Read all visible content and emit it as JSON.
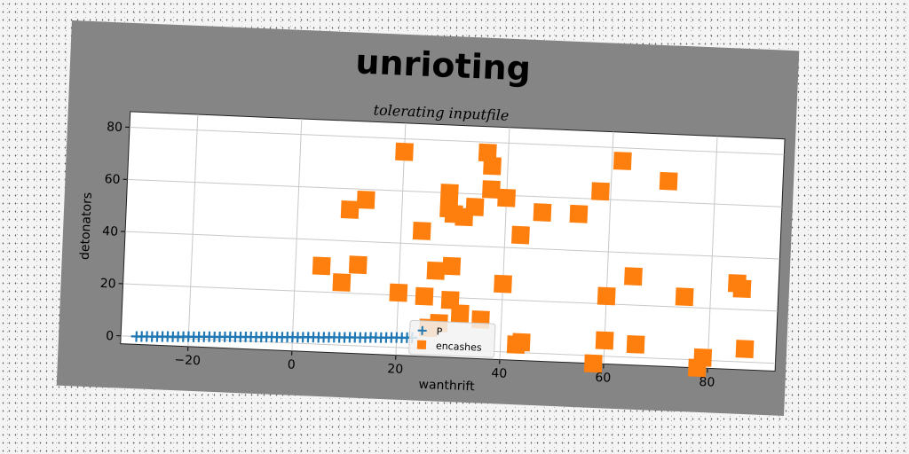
{
  "chart_data": {
    "type": "scatter",
    "title": "unrioting",
    "subtitle": "tolerating inputfile",
    "xlabel": "wanthrift",
    "ylabel": "detonators",
    "xlim": [
      -33,
      93
    ],
    "ylim": [
      -3,
      86
    ],
    "xticks": [
      -20,
      0,
      20,
      40,
      60,
      80
    ],
    "yticks": [
      0,
      20,
      40,
      60,
      80
    ],
    "grid": true,
    "legend_position": "lower-center",
    "series": [
      {
        "name": "P",
        "marker": "plus",
        "color": "#1f77b4",
        "x": [
          -30,
          -29,
          -28,
          -27,
          -26,
          -25,
          -24,
          -23,
          -22,
          -21,
          -20,
          -19,
          -18,
          -17,
          -16,
          -15,
          -14,
          -13,
          -12,
          -11,
          -10,
          -9,
          -8,
          -7,
          -6,
          -5,
          -4,
          -3,
          -2,
          -1,
          0,
          1,
          2,
          3,
          4,
          5,
          6,
          7,
          8,
          9,
          10,
          11,
          12,
          13,
          14,
          15,
          16,
          17,
          18,
          19,
          20,
          21,
          22,
          23
        ],
        "y": [
          0,
          0.1,
          0.2,
          0.2,
          0.3,
          0.4,
          0.5,
          0.5,
          0.6,
          0.7,
          0.8,
          0.8,
          0.9,
          1.0,
          1.1,
          1.1,
          1.2,
          1.3,
          1.4,
          1.4,
          1.5,
          1.6,
          1.7,
          1.7,
          1.8,
          1.9,
          2.0,
          2.0,
          2.1,
          2.2,
          2.3,
          2.3,
          2.4,
          2.5,
          2.6,
          2.6,
          2.7,
          2.8,
          2.9,
          2.9,
          3.0,
          3.1,
          3.2,
          3.2,
          3.3,
          3.4,
          3.5,
          3.5,
          3.6,
          3.7,
          3.8,
          3.8,
          3.9,
          4.0
        ]
      },
      {
        "name": "encashes",
        "marker": "square",
        "color": "#ff7f0e",
        "x": [
          20,
          36,
          37,
          62,
          71,
          29,
          37,
          40,
          58,
          13,
          10,
          29,
          30,
          34,
          32,
          47,
          54,
          24,
          43,
          5,
          12,
          9,
          27,
          30,
          20,
          25,
          30,
          32,
          40,
          60,
          26,
          28,
          36,
          65,
          75,
          85,
          86,
          87,
          60,
          66,
          44,
          43,
          58,
          78,
          79
        ],
        "y": [
          75,
          76,
          71,
          75,
          68,
          60,
          62,
          59,
          63,
          56,
          52,
          54,
          52,
          55,
          51,
          54,
          54,
          45,
          45,
          30,
          31,
          24,
          30,
          32,
          21,
          20,
          19,
          14,
          26,
          23,
          8,
          10,
          12,
          31,
          24,
          30,
          28,
          5,
          6,
          5,
          4,
          3,
          -3,
          -3,
          1
        ]
      }
    ]
  }
}
